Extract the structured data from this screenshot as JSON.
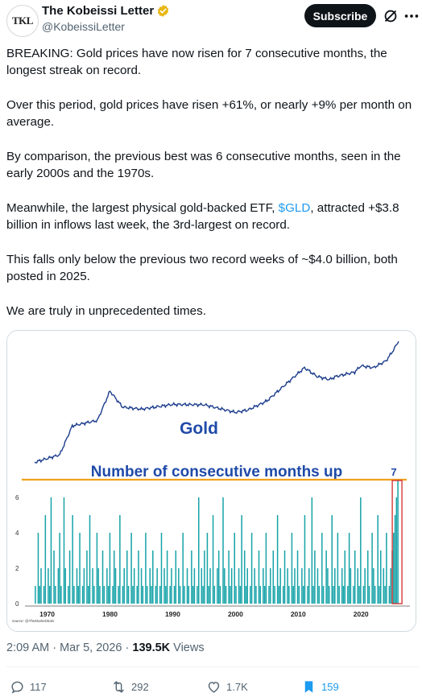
{
  "tweet": {
    "author": {
      "display_name": "The Kobeissi Letter",
      "handle": "@KobeissiLetter",
      "avatar_text": "TKL",
      "verified_color": "#e8b714"
    },
    "subscribe_label": "Subscribe",
    "paragraphs": [
      "BREAKING: Gold prices have now risen for 7 consecutive months, the longest streak on record.",
      "Over this period, gold prices have risen +61%, or nearly +9% per month on average.",
      "By comparison, the previous best was 6 consecutive months, seen in the early 2000s and the 1970s.",
      "This falls only below the previous two record weeks of ~$4.0 billion, both posted in 2025.",
      "We are truly in unprecedented times."
    ],
    "etf_paragraph": {
      "before": "Meanwhile, the largest physical gold-backed ETF, ",
      "cashtag": "$GLD",
      "after": ", attracted +$3.8 billion in inflows last week, the 3rd-largest on record."
    },
    "meta": {
      "time": "2:09 AM",
      "sep1": " · ",
      "date": "Mar 5, 2026",
      "sep2": " · ",
      "views_count": "139.5K",
      "views_label": " Views"
    },
    "actions": {
      "replies": "117",
      "reposts": "292",
      "likes": "1.7K",
      "bookmarks": "159"
    }
  },
  "colors": {
    "gold_line": "#1c3d8c",
    "bars": "#17a3a8",
    "threshold_line": "#f0a11d",
    "highlight_box": "#d42a2a",
    "title_blue": "#1f4aa8"
  },
  "chart_data": {
    "type": "bar",
    "title": "Number of consecutive months up",
    "upper_panel_label": "Gold",
    "highlight_label": "7",
    "source": "source: @TheMarketStats",
    "x_ticks": [
      "1970",
      "1980",
      "1990",
      "2000",
      "2010",
      "2020"
    ],
    "y_ticks": [
      "0",
      "2",
      "4",
      "6"
    ],
    "ylim": [
      0,
      7
    ],
    "threshold": 7,
    "current_streak": 7,
    "series": [
      {
        "name": "Gold",
        "x": [
          1968,
          1972,
          1974,
          1978,
          1980,
          1982,
          1985,
          1990,
          1995,
          2000,
          2002,
          2005,
          2008,
          2011,
          2013,
          2015,
          2016,
          2019,
          2020,
          2022,
          2024,
          2025,
          2026
        ],
        "values": [
          35,
          48,
          160,
          200,
          680,
          350,
          320,
          390,
          385,
          280,
          310,
          450,
          900,
          1800,
          1250,
          1100,
          1250,
          1500,
          1950,
          1800,
          2400,
          3500,
          5400
        ]
      }
    ],
    "streak_sample": {
      "x_range": [
        1968,
        2026
      ],
      "values": [
        1,
        0,
        4,
        1,
        2,
        0,
        1,
        5,
        0,
        2,
        1,
        6,
        0,
        3,
        1,
        0,
        2,
        4,
        1,
        0,
        6,
        2,
        0,
        1,
        3,
        0,
        5,
        1,
        0,
        2,
        1,
        4,
        0,
        1,
        2,
        0,
        3,
        1,
        5,
        0,
        2,
        1,
        0,
        4,
        2,
        1,
        0,
        3,
        1,
        0,
        2,
        1,
        4,
        0,
        1,
        3,
        2,
        0,
        1,
        5,
        0,
        1,
        2,
        0,
        3,
        1,
        0,
        4,
        1,
        2,
        0,
        1,
        3,
        0,
        2,
        1,
        0,
        4,
        1,
        0,
        2,
        1,
        3,
        0,
        1,
        2,
        0,
        1,
        4,
        0,
        2,
        1,
        3,
        0,
        1,
        2,
        0,
        1,
        3,
        0,
        2,
        1,
        0,
        4,
        1,
        0,
        2,
        1,
        0,
        3,
        1,
        2,
        0,
        1,
        6,
        0,
        2,
        1,
        3,
        0,
        4,
        1,
        2,
        0,
        5,
        1,
        0,
        2,
        3,
        1,
        0,
        6,
        2,
        1,
        0,
        3,
        1,
        2,
        0,
        4,
        1,
        0,
        2,
        1,
        5,
        0,
        3,
        1,
        2,
        0,
        1,
        4,
        0,
        2,
        1,
        0,
        3,
        1,
        0,
        2,
        1,
        4,
        0,
        1,
        2,
        0,
        3,
        1,
        0,
        5,
        1,
        2,
        0,
        1,
        3,
        0,
        2,
        1,
        0,
        4,
        1,
        2,
        0,
        3,
        1,
        0,
        2,
        1,
        5,
        0,
        1,
        2,
        0,
        6,
        1,
        3,
        0,
        2,
        1,
        0,
        4,
        1,
        0,
        3,
        2,
        1,
        0,
        5,
        1,
        2,
        0,
        4,
        1,
        0,
        2,
        1,
        3,
        0,
        1,
        4,
        2,
        0,
        1,
        3,
        0,
        2,
        1,
        6,
        0,
        1,
        2,
        0,
        3,
        1,
        0,
        4,
        2,
        1,
        0,
        5,
        1,
        3,
        0,
        2,
        1,
        4,
        0,
        1,
        2,
        3,
        4,
        5,
        6,
        7
      ]
    }
  }
}
